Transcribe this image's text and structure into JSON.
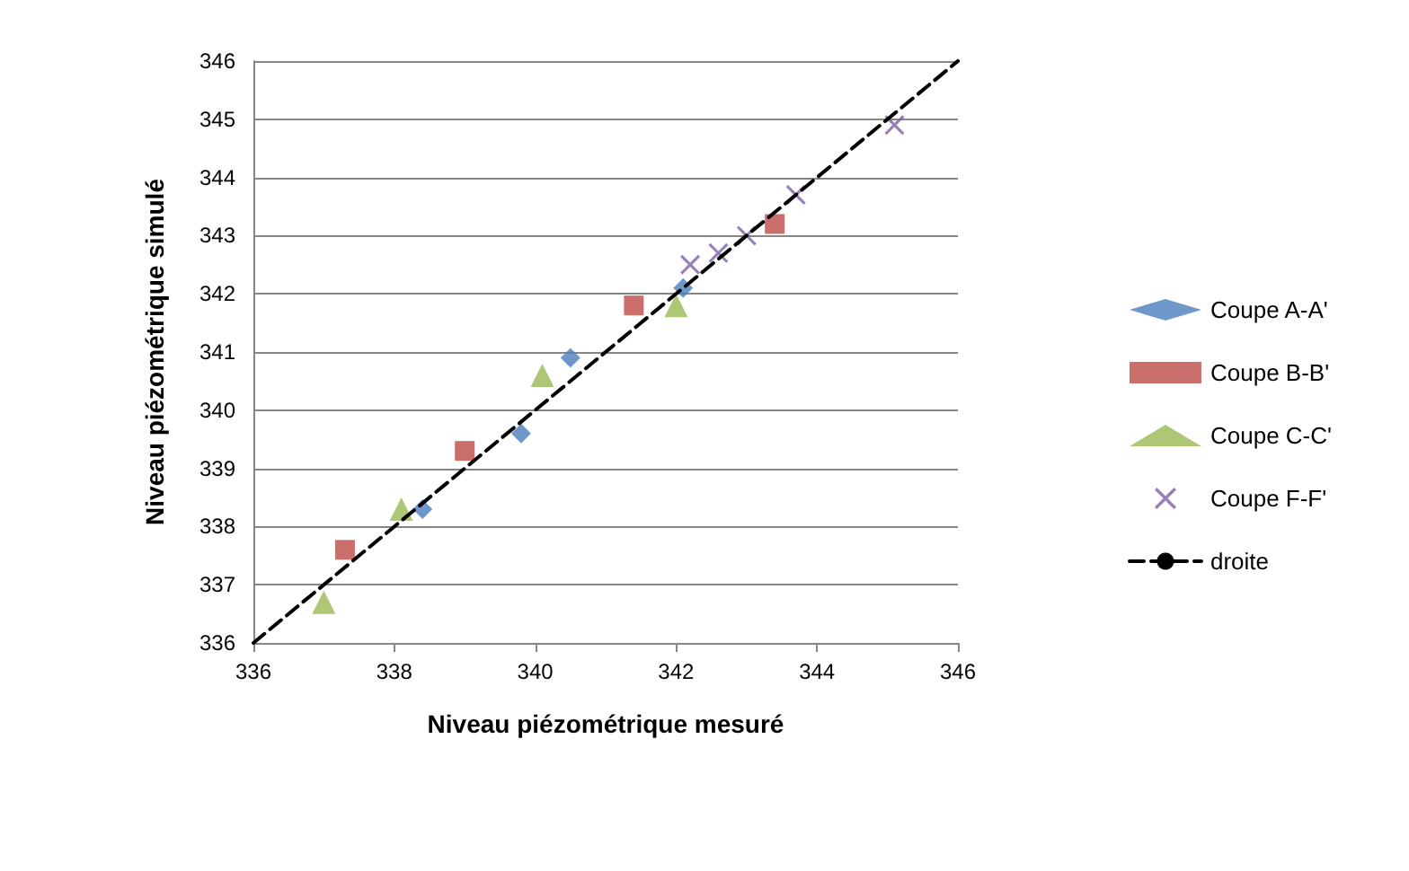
{
  "chart_data": {
    "type": "scatter",
    "xlabel": "Niveau piézométrique mesuré",
    "ylabel": "Niveau piézométrique simulé",
    "xlim": [
      336,
      346
    ],
    "ylim": [
      336,
      346
    ],
    "xticks": [
      336,
      338,
      340,
      342,
      344,
      346
    ],
    "yticks": [
      336,
      337,
      338,
      339,
      340,
      341,
      342,
      343,
      344,
      345,
      346
    ],
    "grid": "y",
    "legend": "right",
    "series": [
      {
        "name": "Coupe A-A'",
        "color": "#4a7ebb",
        "marker": "diamond",
        "x": [
          338.4,
          339.8,
          340.5,
          342.1
        ],
        "values": [
          338.3,
          339.6,
          340.9,
          342.1
        ]
      },
      {
        "name": "Coupe B-B'",
        "color": "#be4b48",
        "marker": "square",
        "x": [
          337.3,
          339.0,
          341.4,
          343.4
        ],
        "values": [
          337.6,
          339.3,
          341.8,
          343.2
        ]
      },
      {
        "name": "Coupe C-C'",
        "color": "#98b954",
        "marker": "triangle",
        "x": [
          337.0,
          338.1,
          340.1,
          342.0
        ],
        "values": [
          336.7,
          338.3,
          340.6,
          341.8
        ]
      },
      {
        "name": "Coupe F-F'",
        "color": "#7d60a0",
        "marker": "cross",
        "x": [
          342.2,
          342.6,
          343.0,
          343.7,
          345.1
        ],
        "values": [
          342.5,
          342.7,
          343.0,
          343.7,
          344.9
        ]
      },
      {
        "name": "droite",
        "type": "line",
        "color": "#000000",
        "marker": "none",
        "line_style": "dashed",
        "x": [
          336,
          346
        ],
        "values": [
          336,
          346
        ]
      }
    ]
  }
}
